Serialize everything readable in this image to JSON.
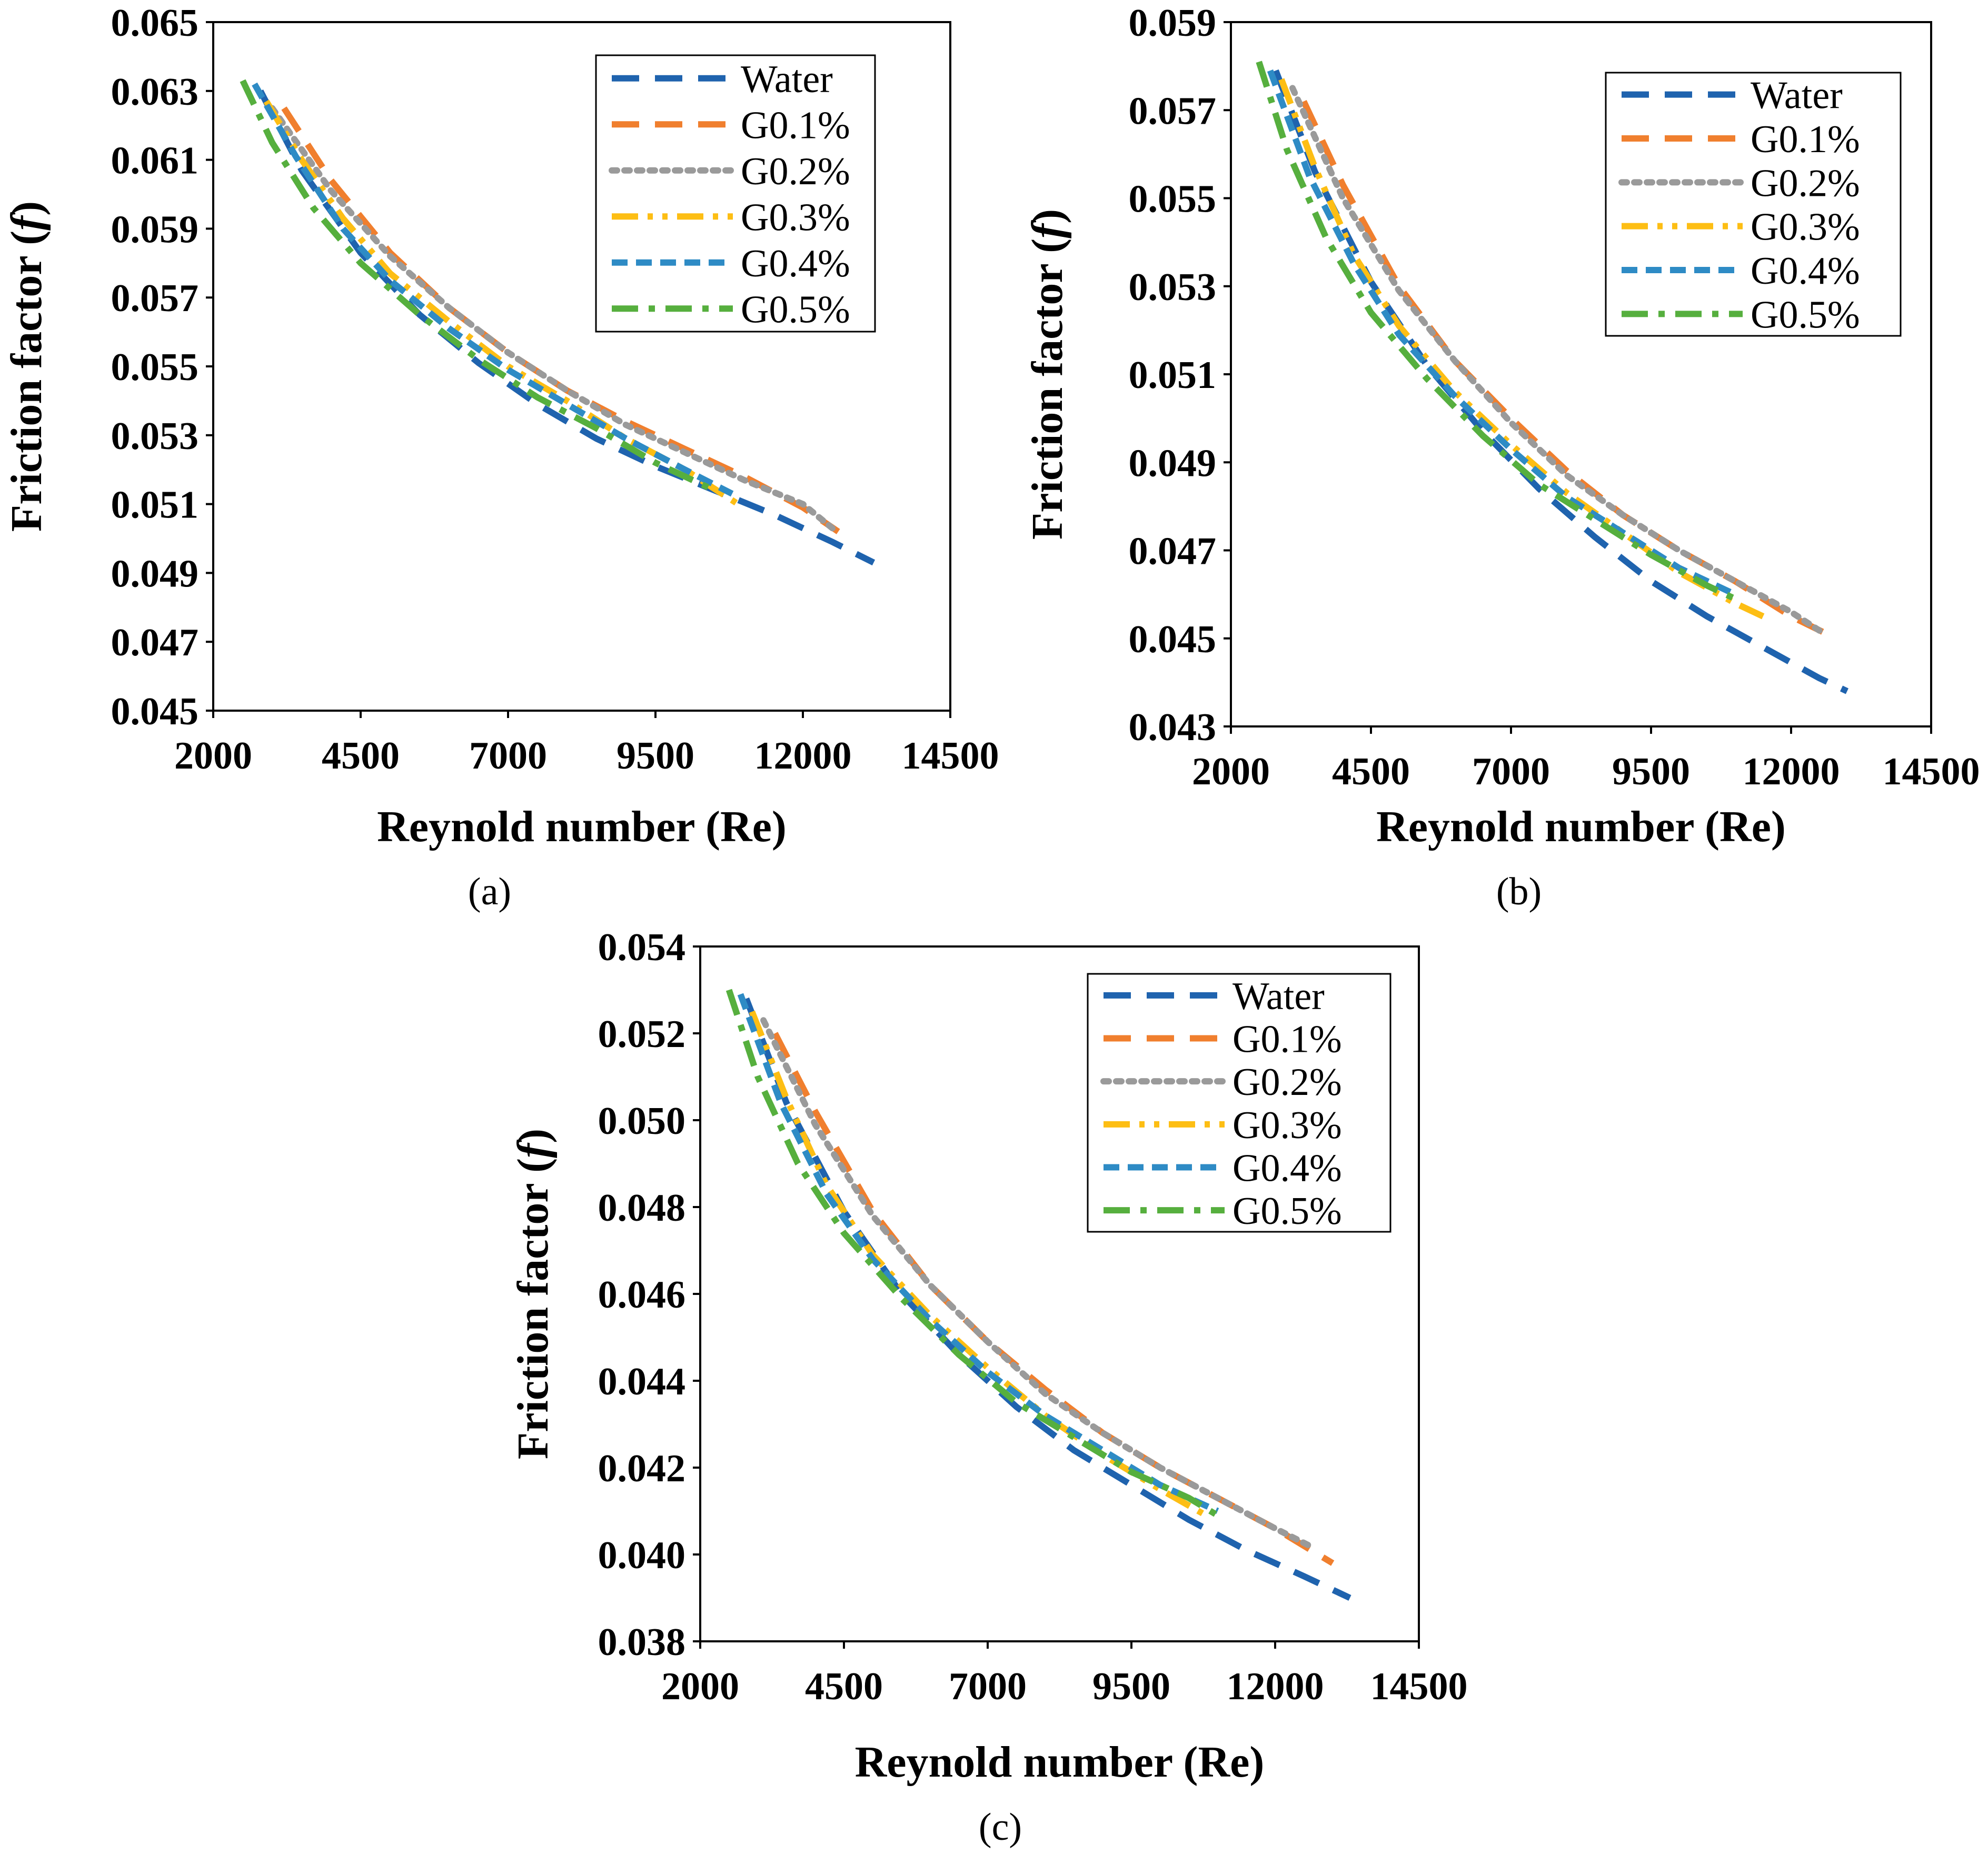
{
  "series_styles": [
    {
      "name": "Water",
      "color": "#1F63AE",
      "dash": "dash-long"
    },
    {
      "name": "G0.1%",
      "color": "#F07F2E",
      "dash": "dash-long"
    },
    {
      "name": "G0.2%",
      "color": "#9A9A9A",
      "dash": "dot"
    },
    {
      "name": "G0.3%",
      "color": "#FDBE14",
      "dash": "long-dash-dot-dot"
    },
    {
      "name": "G0.4%",
      "color": "#2E8BC5",
      "dash": "dash"
    },
    {
      "name": "G0.5%",
      "color": "#56AF3E",
      "dash": "long-dash-dot"
    }
  ],
  "chart_data": [
    {
      "panel": "a",
      "caption": "(a)",
      "type": "line",
      "title": "",
      "xlabel": "Reynold number (Re)",
      "ylabel": "Friction factor (f)",
      "xlim": [
        2000,
        14500
      ],
      "ylim": [
        0.045,
        0.065
      ],
      "xticks": [
        "2000",
        "4500",
        "7000",
        "9500",
        "12000",
        "14500"
      ],
      "yticks": [
        "0.045",
        "0.047",
        "0.049",
        "0.051",
        "0.053",
        "0.055",
        "0.057",
        "0.059",
        "0.061",
        "0.063",
        "0.065"
      ],
      "legend_position": "top-right",
      "series": [
        {
          "name": "Water",
          "x": [
            2800,
            3500,
            4500,
            5500,
            6500,
            7500,
            8500,
            9500,
            10500,
            11500,
            12500,
            13200
          ],
          "y": [
            0.063,
            0.0607,
            0.0583,
            0.0565,
            0.0551,
            0.0539,
            0.0529,
            0.0521,
            0.0514,
            0.0507,
            0.0499,
            0.0493
          ]
        },
        {
          "name": "G0.1%",
          "x": [
            3200,
            4000,
            5000,
            6000,
            7000,
            8000,
            9000,
            10000,
            11000,
            12000,
            12600
          ],
          "y": [
            0.0625,
            0.0604,
            0.0583,
            0.0567,
            0.0554,
            0.0543,
            0.0534,
            0.0526,
            0.0518,
            0.0509,
            0.0502
          ]
        },
        {
          "name": "G0.2%",
          "x": [
            3000,
            4000,
            5000,
            6000,
            7000,
            8000,
            9000,
            10000,
            11000,
            12000,
            12500
          ],
          "y": [
            0.0625,
            0.0601,
            0.0582,
            0.0567,
            0.0554,
            0.0543,
            0.0533,
            0.0525,
            0.0517,
            0.051,
            0.0503
          ]
        },
        {
          "name": "G0.3%",
          "x": [
            2900,
            3500,
            4200,
            5000,
            6000,
            7000,
            8000,
            9000,
            10000,
            10900
          ],
          "y": [
            0.0627,
            0.061,
            0.0593,
            0.0577,
            0.0563,
            0.055,
            0.054,
            0.0529,
            0.052,
            0.051
          ]
        },
        {
          "name": "G0.4%",
          "x": [
            2700,
            3400,
            4200,
            5000,
            6000,
            7000,
            8000,
            9000,
            10000,
            10800
          ],
          "y": [
            0.0632,
            0.0611,
            0.059,
            0.0575,
            0.0561,
            0.0549,
            0.0539,
            0.0529,
            0.052,
            0.0513
          ]
        },
        {
          "name": "G0.5%",
          "x": [
            2500,
            3000,
            3700,
            4500,
            5500,
            6500,
            7500,
            8500,
            9500,
            10500
          ],
          "y": [
            0.0633,
            0.0615,
            0.0596,
            0.058,
            0.0565,
            0.0552,
            0.0541,
            0.0532,
            0.0522,
            0.0514
          ]
        }
      ]
    },
    {
      "panel": "b",
      "caption": "(b)",
      "type": "line",
      "title": "",
      "xlabel": "Reynold number (Re)",
      "ylabel": "Friction factor (f)",
      "xlim": [
        2000,
        14500
      ],
      "ylim": [
        0.043,
        0.059
      ],
      "xticks": [
        "2000",
        "4500",
        "7000",
        "9500",
        "12000",
        "14500"
      ],
      "yticks": [
        "0.043",
        "0.045",
        "0.047",
        "0.049",
        "0.051",
        "0.053",
        "0.055",
        "0.057",
        "0.059"
      ],
      "legend_position": "top-right",
      "series": [
        {
          "name": "Water",
          "x": [
            2800,
            3500,
            4500,
            5500,
            6500,
            7500,
            8500,
            9500,
            10500,
            11500,
            12500,
            13000
          ],
          "y": [
            0.0579,
            0.0556,
            0.0531,
            0.0512,
            0.0497,
            0.0484,
            0.0473,
            0.0463,
            0.0455,
            0.0448,
            0.0441,
            0.0438
          ]
        },
        {
          "name": "G0.1%",
          "x": [
            3300,
            4000,
            5000,
            6000,
            7000,
            8000,
            9000,
            10000,
            11000,
            12000,
            12800
          ],
          "y": [
            0.0572,
            0.0553,
            0.053,
            0.0513,
            0.05,
            0.0488,
            0.0478,
            0.047,
            0.0463,
            0.0455,
            0.045
          ]
        },
        {
          "name": "G0.2%",
          "x": [
            3100,
            4000,
            5000,
            6000,
            7000,
            8000,
            9000,
            10000,
            11000,
            12000,
            12600
          ],
          "y": [
            0.0575,
            0.055,
            0.0529,
            0.0513,
            0.0499,
            0.0487,
            0.0478,
            0.047,
            0.0463,
            0.0456,
            0.0451
          ]
        },
        {
          "name": "G0.3%",
          "x": [
            2900,
            3500,
            4200,
            5000,
            6000,
            7000,
            8000,
            9000,
            10000,
            11000,
            11500
          ],
          "y": [
            0.0577,
            0.0557,
            0.0537,
            0.0521,
            0.0506,
            0.0494,
            0.0483,
            0.0474,
            0.0465,
            0.0458,
            0.0455
          ]
        },
        {
          "name": "G0.4%",
          "x": [
            2700,
            3400,
            4200,
            5000,
            6000,
            7000,
            8000,
            9000,
            10000,
            11000
          ],
          "y": [
            0.0579,
            0.0555,
            0.0535,
            0.0519,
            0.0505,
            0.0493,
            0.0482,
            0.0474,
            0.0466,
            0.046
          ]
        },
        {
          "name": "G0.5%",
          "x": [
            2500,
            3000,
            3700,
            4500,
            5500,
            6500,
            7500,
            8500,
            9500,
            10500,
            11000
          ],
          "y": [
            0.0581,
            0.0561,
            0.0541,
            0.0524,
            0.0509,
            0.0496,
            0.0485,
            0.0477,
            0.0469,
            0.0462,
            0.0459
          ]
        }
      ]
    },
    {
      "panel": "c",
      "caption": "(c)",
      "type": "line",
      "title": "",
      "xlabel": "Reynold number (Re)",
      "ylabel": "Friction factor (f)",
      "xlim": [
        2000,
        14500
      ],
      "ylim": [
        0.038,
        0.054
      ],
      "xticks": [
        "2000",
        "4500",
        "7000",
        "9500",
        "12000",
        "14500"
      ],
      "yticks": [
        "0.038",
        "0.040",
        "0.042",
        "0.044",
        "0.046",
        "0.048",
        "0.050",
        "0.052",
        "0.054"
      ],
      "legend_position": "top-right",
      "series": [
        {
          "name": "Water",
          "x": [
            2800,
            3500,
            4500,
            5500,
            6500,
            7500,
            8500,
            9500,
            10500,
            11500,
            12500,
            13300
          ],
          "y": [
            0.0528,
            0.0504,
            0.0479,
            0.046,
            0.0446,
            0.0434,
            0.0424,
            0.0416,
            0.0408,
            0.0401,
            0.0395,
            0.039
          ]
        },
        {
          "name": "G0.1%",
          "x": [
            3300,
            4000,
            5000,
            6000,
            7000,
            8000,
            9000,
            10000,
            11000,
            12000,
            13000
          ],
          "y": [
            0.052,
            0.0502,
            0.0479,
            0.0462,
            0.0449,
            0.0438,
            0.0428,
            0.042,
            0.0413,
            0.0406,
            0.0398
          ]
        },
        {
          "name": "G0.2%",
          "x": [
            3100,
            4000,
            5000,
            6000,
            7000,
            8000,
            9000,
            10000,
            11000,
            12000,
            12600
          ],
          "y": [
            0.0523,
            0.0499,
            0.0478,
            0.0462,
            0.0449,
            0.0437,
            0.0428,
            0.042,
            0.0413,
            0.0406,
            0.0402
          ]
        },
        {
          "name": "G0.3%",
          "x": [
            2900,
            3500,
            4200,
            5000,
            6000,
            7000,
            8000,
            9000,
            10000,
            10800
          ],
          "y": [
            0.0525,
            0.0505,
            0.0485,
            0.0469,
            0.0455,
            0.0443,
            0.0432,
            0.0423,
            0.0415,
            0.0409
          ]
        },
        {
          "name": "G0.4%",
          "x": [
            2700,
            3400,
            4200,
            5000,
            6000,
            7000,
            8000,
            9000,
            10000,
            11000
          ],
          "y": [
            0.0529,
            0.0504,
            0.0483,
            0.0468,
            0.0454,
            0.0442,
            0.0432,
            0.0424,
            0.0416,
            0.041
          ]
        },
        {
          "name": "G0.5%",
          "x": [
            2500,
            3000,
            3700,
            4500,
            5500,
            6500,
            7500,
            8500,
            9500,
            10500,
            11000
          ],
          "y": [
            0.053,
            0.051,
            0.049,
            0.0474,
            0.0459,
            0.0446,
            0.0435,
            0.0427,
            0.0419,
            0.0413,
            0.0409
          ]
        }
      ]
    }
  ]
}
